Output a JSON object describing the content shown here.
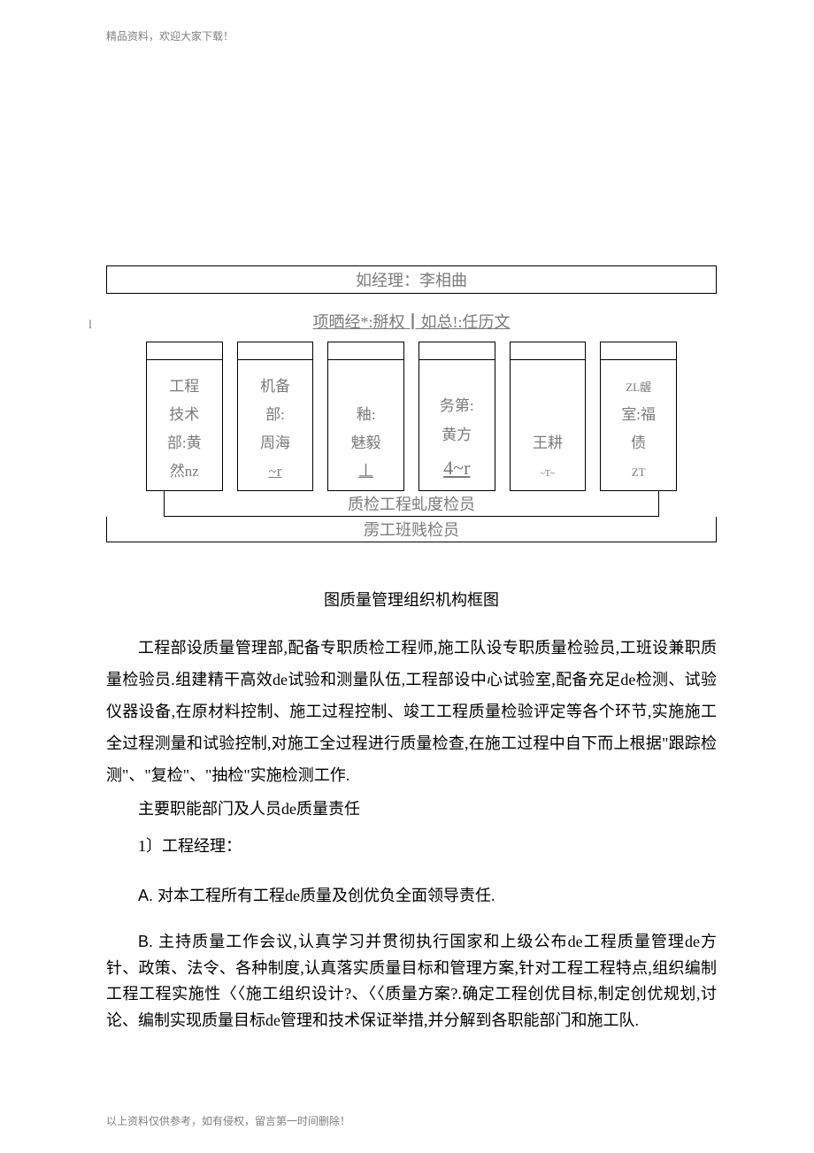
{
  "header_note": "精品资料，欢迎大家下载！",
  "footer_note": "以上资料仅供参考，如有侵权，留言第一时间删除！",
  "org_chart": {
    "top_box": "如经理：李相曲",
    "second_line": "项晒经*:掰权┃如总!:任历文",
    "l_mark": "l",
    "cells": [
      {
        "lines": [
          "工程",
          "技术",
          "部:黄"
        ],
        "suffix": "然nz",
        "suffix_uline": false
      },
      {
        "lines": [
          "机备",
          "部:",
          "周海"
        ],
        "suffix": "~r",
        "suffix_uline": true
      },
      {
        "lines": [
          "",
          "釉:",
          "魅毅"
        ],
        "suffix": "丄",
        "suffix_uline": true
      },
      {
        "lines": [
          "",
          "务第:",
          "黄方"
        ],
        "suffix": "4~r",
        "suffix_uline": true,
        "big": true
      },
      {
        "lines": [
          "",
          "",
          "王耕"
        ],
        "suffix": "~T~",
        "suffix_uline": false,
        "tiny": true
      },
      {
        "lines_top": "ZL龌",
        "lines": [
          "室:福",
          "债"
        ],
        "suffix": "ZT",
        "suffix_uline": false,
        "zl": true
      }
    ],
    "bottom_box1": "质检工程虬度检员",
    "bottom_box2": "雳工班贱检员"
  },
  "caption": "图质量管理组织机构框图",
  "para1": "工程部设质量管理部,配备专职质检工程师,施工队设专职质量检验员,工班设兼职质量检验员.组建精干高效de试验和测量队伍,工程部设中心试验室,配备充足de检测、试验仪器设备,在原材料控制、施工过程控制、竣工工程质量检验评定等各个环节,实施施工全过程测量和试验控制,对施工全过程进行质量检查,在施工过程中自下而上根据\"跟踪检测\"、\"复检\"、\"抽检\"实施检测工作.",
  "sub_heading": "主要职能部门及人员de质量责任",
  "item1": "1〕工程经理：",
  "itemA": "对本工程所有工程de质量及创优负全面领导责任.",
  "itemB": "主持质量工作会议,认真学习并贯彻执行国家和上级公布de工程质量管理de方针、政策、法令、各种制度,认真落实质量目标和管理方案,针对工程工程特点,组织编制工程工程实施性〈〈施工组织设计?、〈〈质量方案?.确定工程创优目标,制定创优规划,讨论、编制实现质量目标de管理和技术保证举措,并分解到各职能部门和施工队.",
  "colors": {
    "text_gray": "#7b7b7b",
    "text_black": "#000000",
    "note_gray": "#808080",
    "border": "#000000",
    "bg": "#ffffff"
  }
}
